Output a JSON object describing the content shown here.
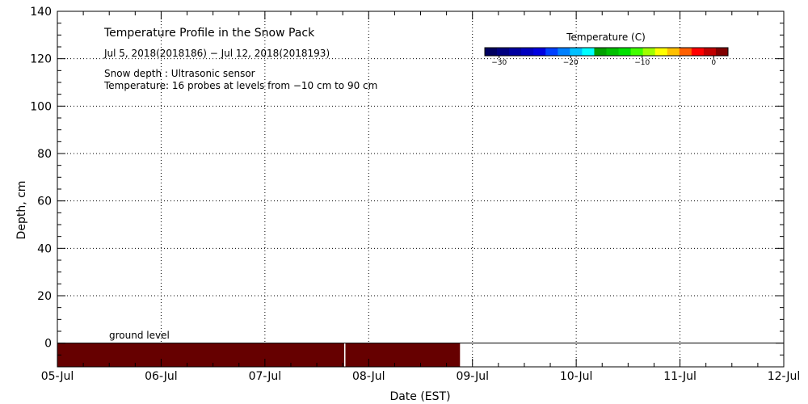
{
  "chart_data": {
    "type": "heatmap",
    "title": "Temperature Profile in the Snow Pack",
    "subtitle": "Jul  5, 2018(2018186) − Jul 12, 2018(2018193)",
    "notes": [
      "Snow depth : Ultrasonic sensor",
      "Temperature: 16 probes at levels from −10 cm to 90 cm"
    ],
    "xlabel": "Date (EST)",
    "ylabel": "Depth, cm",
    "x_ticks": [
      "05-Jul",
      "06-Jul",
      "07-Jul",
      "08-Jul",
      "09-Jul",
      "10-Jul",
      "11-Jul",
      "12-Jul"
    ],
    "y_ticks": [
      "0",
      "20",
      "40",
      "60",
      "80",
      "100",
      "120",
      "140"
    ],
    "xlim_days": [
      0,
      7
    ],
    "ylim": [
      -10,
      140
    ],
    "grid": true,
    "ground_label": "ground level",
    "ground_level_cm": 0,
    "data_band": {
      "depth_range_cm": [
        -10,
        0
      ],
      "day_range": [
        0,
        3.88
      ],
      "gap_at_day": 2.77,
      "temperature_C": 1.5,
      "color": "#660000"
    },
    "colorbar": {
      "title": "Temperature (C)",
      "range": [
        -32,
        2
      ],
      "tick_labels": [
        "−30",
        "−20",
        "−10",
        "0"
      ],
      "tick_values": [
        -30,
        -20,
        -10,
        0
      ],
      "colors": [
        "#00005f",
        "#00007f",
        "#0000a0",
        "#0000c0",
        "#0000e0",
        "#0040ff",
        "#0080ff",
        "#00c0ff",
        "#00ffff",
        "#00a000",
        "#00c000",
        "#00e000",
        "#40ff00",
        "#a0ff00",
        "#ffff00",
        "#ffc000",
        "#ff6000",
        "#ff0000",
        "#c00000",
        "#800000"
      ]
    }
  }
}
